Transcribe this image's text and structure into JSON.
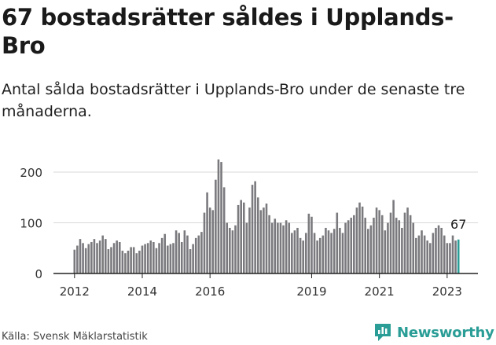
{
  "header": {
    "title": "67 bostadsrätter såldes i Upplands-Bro",
    "subtitle": "Antal sålda bostadsrätter i Upplands-Bro under de senaste tre månaderna."
  },
  "footer": {
    "source": "Källa: Svensk Mäklarstatistik",
    "brand": "Newsworthy",
    "brand_icon": "newsworthy-logo-icon",
    "brand_color": "#2a9d96"
  },
  "chart_data": {
    "type": "bar",
    "x_start": "2012-01",
    "ylim": [
      0,
      230
    ],
    "yticks": [
      0,
      100,
      200
    ],
    "xtick_labels": [
      "2012",
      "2014",
      "2016",
      "2019",
      "2021",
      "2023"
    ],
    "bar_color": "#7a7a7e",
    "highlight_color": "#2a9d96",
    "highlight_label": "67",
    "grid": true,
    "values": [
      47,
      55,
      68,
      60,
      50,
      58,
      62,
      68,
      60,
      65,
      75,
      68,
      48,
      52,
      60,
      65,
      62,
      45,
      40,
      45,
      52,
      52,
      40,
      45,
      55,
      58,
      60,
      65,
      62,
      50,
      60,
      70,
      78,
      55,
      58,
      60,
      85,
      80,
      62,
      85,
      75,
      48,
      58,
      70,
      75,
      82,
      120,
      160,
      130,
      125,
      185,
      225,
      220,
      170,
      100,
      90,
      85,
      95,
      135,
      145,
      140,
      100,
      130,
      175,
      182,
      150,
      125,
      130,
      138,
      115,
      100,
      108,
      100,
      100,
      95,
      105,
      100,
      80,
      85,
      90,
      70,
      65,
      80,
      118,
      112,
      80,
      65,
      70,
      75,
      90,
      85,
      80,
      88,
      120,
      90,
      80,
      100,
      105,
      110,
      115,
      130,
      140,
      132,
      110,
      88,
      95,
      110,
      130,
      125,
      115,
      85,
      100,
      120,
      145,
      110,
      105,
      90,
      120,
      130,
      115,
      100,
      70,
      75,
      85,
      75,
      65,
      60,
      80,
      90,
      95,
      90,
      75,
      60,
      60,
      75,
      65,
      67
    ]
  }
}
